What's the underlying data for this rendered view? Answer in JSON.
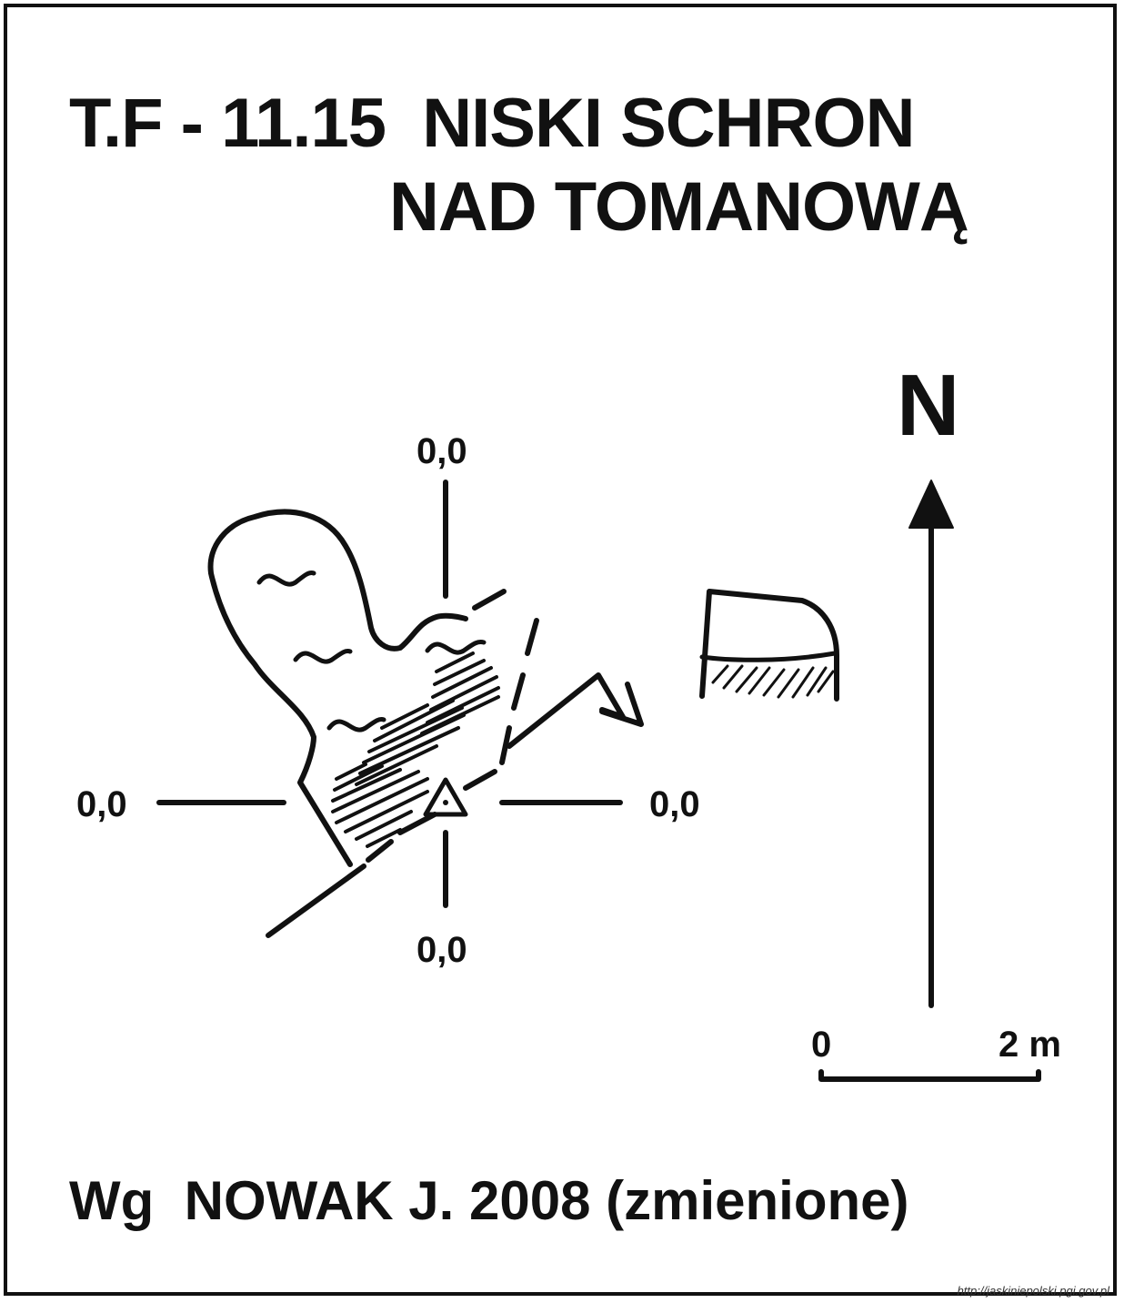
{
  "title": {
    "line1": "T.F - 11.15  NISKI SCHRON",
    "line2": "NAD TOMANOWĄ"
  },
  "north_label": "N",
  "elevation_labels": {
    "top": "0,0",
    "left": "0,0",
    "right": "0,0",
    "bottom": "0,0"
  },
  "scale_bar": {
    "start_label": "0",
    "end_label": "2 m"
  },
  "source_text": "Wg  NOWAK J. 2008 (zmienione)",
  "url_text": "http://jaskiniepolski.pgi.gov.pl"
}
